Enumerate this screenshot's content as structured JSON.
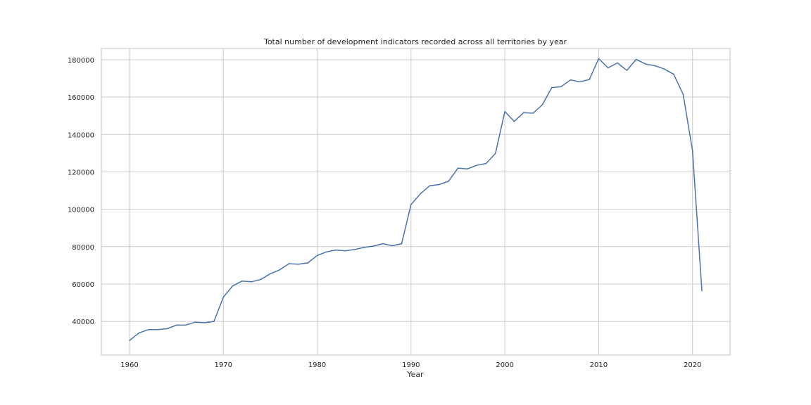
{
  "chart_data": {
    "type": "line",
    "title": "Total number of development indicators recorded across all territories by year",
    "xlabel": "Year",
    "ylabel": "",
    "xlim": [
      1957,
      2024
    ],
    "ylim": [
      22000,
      186000
    ],
    "x_ticks": [
      1960,
      1970,
      1980,
      1990,
      2000,
      2010,
      2020
    ],
    "x_tick_labels": [
      "1960",
      "1970",
      "1980",
      "1990",
      "2000",
      "2010",
      "2020"
    ],
    "y_ticks": [
      40000,
      60000,
      80000,
      100000,
      120000,
      140000,
      160000,
      180000
    ],
    "y_tick_labels": [
      "40000",
      "60000",
      "80000",
      "100000",
      "120000",
      "140000",
      "160000",
      "180000"
    ],
    "grid": true,
    "line_color": "#4c72b0",
    "grid_color": "#cccccc",
    "series": [
      {
        "x": [
          1960,
          1961,
          1962,
          1963,
          1964,
          1965,
          1966,
          1967,
          1968,
          1969,
          1970,
          1971,
          1972,
          1973,
          1974,
          1975,
          1976,
          1977,
          1978,
          1979,
          1980,
          1981,
          1982,
          1983,
          1984,
          1985,
          1986,
          1987,
          1988,
          1989,
          1990,
          1991,
          1992,
          1993,
          1994,
          1995,
          1996,
          1997,
          1998,
          1999,
          2000,
          2001,
          2002,
          2003,
          2004,
          2005,
          2006,
          2007,
          2008,
          2009,
          2010,
          2011,
          2012,
          2013,
          2014,
          2015,
          2016,
          2017,
          2018,
          2019,
          2020,
          2021
        ],
        "values": [
          29800,
          33800,
          35600,
          35600,
          36100,
          38000,
          38100,
          39600,
          39300,
          40000,
          53000,
          59000,
          61600,
          61200,
          62500,
          65500,
          67600,
          70900,
          70600,
          71300,
          75300,
          77200,
          78200,
          77800,
          78500,
          79600,
          80300,
          81600,
          80500,
          81600,
          102500,
          108300,
          112600,
          113200,
          115000,
          122000,
          121600,
          123500,
          124500,
          129900,
          152300,
          147000,
          151700,
          151400,
          155900,
          165100,
          165600,
          169200,
          168200,
          169400,
          180600,
          175700,
          178300,
          174300,
          180200,
          177700,
          176800,
          175000,
          172200,
          161500,
          131300,
          56400
        ]
      }
    ]
  }
}
